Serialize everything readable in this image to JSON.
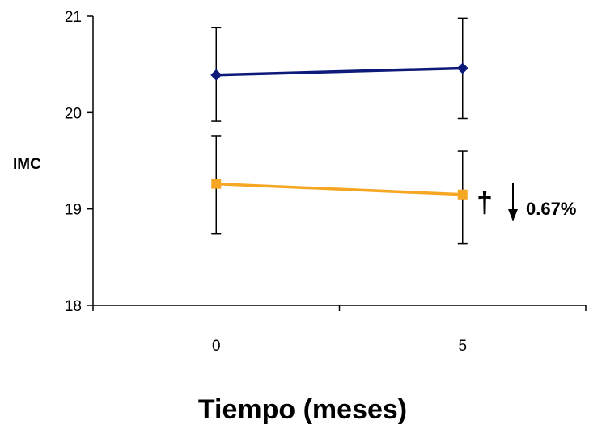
{
  "chart_data": {
    "type": "line",
    "x": [
      "0",
      "5"
    ],
    "ylim": [
      18,
      21
    ],
    "yticks": [
      "18",
      "19",
      "20",
      "21"
    ],
    "xlabel": "Tiempo (meses)",
    "ylabel": "IMC",
    "grid": false,
    "series": [
      {
        "color": "#0d1a7a",
        "marker": "diamond",
        "values": [
          20.39,
          20.46
        ],
        "error": [
          [
            19.91,
            20.88
          ],
          [
            19.94,
            20.98
          ]
        ]
      },
      {
        "color": "#f5a623",
        "marker": "square",
        "values": [
          19.26,
          19.15
        ],
        "error": [
          [
            18.74,
            19.76
          ],
          [
            18.64,
            19.6
          ]
        ]
      }
    ],
    "annotation": {
      "symbol": "†",
      "arrow": "down",
      "text": "0.67%"
    }
  }
}
